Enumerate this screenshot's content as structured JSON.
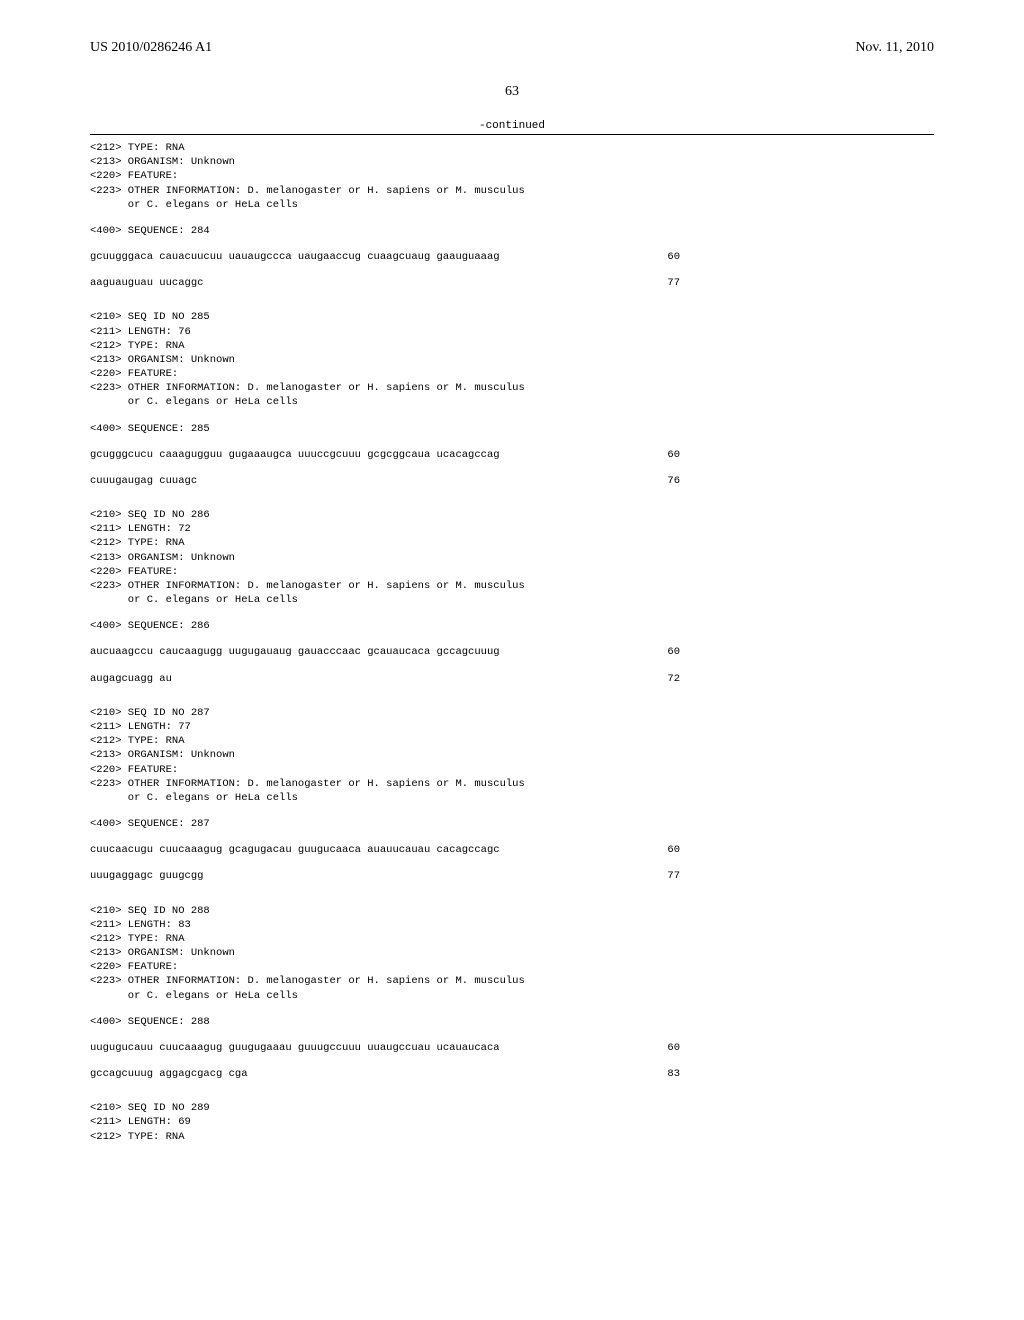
{
  "header": {
    "pub_number": "US 2010/0286246 A1",
    "pub_date": "Nov. 11, 2010"
  },
  "page_number": "63",
  "continued_label": "-continued",
  "entries": [
    {
      "meta_lines": [
        "<212> TYPE: RNA",
        "<213> ORGANISM: Unknown",
        "<220> FEATURE:",
        "<223> OTHER INFORMATION: D. melanogaster or H. sapiens or M. musculus",
        "      or C. elegans or HeLa cells"
      ],
      "seq_label": "<400> SEQUENCE: 284",
      "seq_lines": [
        {
          "text": "gcuugggaca cauacuucuu uauaugccca uaugaaccug cuaagcuaug gaauguaaag",
          "pos": "60"
        },
        {
          "text": "aaguauguau uucaggc",
          "pos": "77"
        }
      ]
    },
    {
      "meta_lines": [
        "<210> SEQ ID NO 285",
        "<211> LENGTH: 76",
        "<212> TYPE: RNA",
        "<213> ORGANISM: Unknown",
        "<220> FEATURE:",
        "<223> OTHER INFORMATION: D. melanogaster or H. sapiens or M. musculus",
        "      or C. elegans or HeLa cells"
      ],
      "seq_label": "<400> SEQUENCE: 285",
      "seq_lines": [
        {
          "text": "gcugggcucu caaagugguu gugaaaugca uuuccgcuuu gcgcggcaua ucacagccag",
          "pos": "60"
        },
        {
          "text": "cuuugaugag cuuagc",
          "pos": "76"
        }
      ]
    },
    {
      "meta_lines": [
        "<210> SEQ ID NO 286",
        "<211> LENGTH: 72",
        "<212> TYPE: RNA",
        "<213> ORGANISM: Unknown",
        "<220> FEATURE:",
        "<223> OTHER INFORMATION: D. melanogaster or H. sapiens or M. musculus",
        "      or C. elegans or HeLa cells"
      ],
      "seq_label": "<400> SEQUENCE: 286",
      "seq_lines": [
        {
          "text": "aucuaagccu caucaagugg uugugauaug gauacccaac gcauaucaca gccagcuuug",
          "pos": "60"
        },
        {
          "text": "augagcuagg au",
          "pos": "72"
        }
      ]
    },
    {
      "meta_lines": [
        "<210> SEQ ID NO 287",
        "<211> LENGTH: 77",
        "<212> TYPE: RNA",
        "<213> ORGANISM: Unknown",
        "<220> FEATURE:",
        "<223> OTHER INFORMATION: D. melanogaster or H. sapiens or M. musculus",
        "      or C. elegans or HeLa cells"
      ],
      "seq_label": "<400> SEQUENCE: 287",
      "seq_lines": [
        {
          "text": "cuucaacugu cuucaaagug gcagugacau guugucaaca auauucauau cacagccagc",
          "pos": "60"
        },
        {
          "text": "uuugaggagc guugcgg",
          "pos": "77"
        }
      ]
    },
    {
      "meta_lines": [
        "<210> SEQ ID NO 288",
        "<211> LENGTH: 83",
        "<212> TYPE: RNA",
        "<213> ORGANISM: Unknown",
        "<220> FEATURE:",
        "<223> OTHER INFORMATION: D. melanogaster or H. sapiens or M. musculus",
        "      or C. elegans or HeLa cells"
      ],
      "seq_label": "<400> SEQUENCE: 288",
      "seq_lines": [
        {
          "text": "uugugucauu cuucaaagug guugugaaau guuugccuuu uuaugccuau ucauaucaca",
          "pos": "60"
        },
        {
          "text": "gccagcuuug aggagcgacg cga",
          "pos": "83"
        }
      ]
    },
    {
      "meta_lines": [
        "<210> SEQ ID NO 289",
        "<211> LENGTH: 69",
        "<212> TYPE: RNA"
      ],
      "seq_label": "",
      "seq_lines": []
    }
  ]
}
